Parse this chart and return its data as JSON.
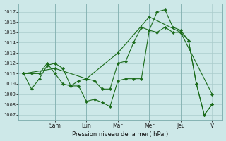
{
  "ylabel": "Pression niveau de la mer( hPa )",
  "background_color": "#cde8e8",
  "grid_color": "#aacccc",
  "line_color": "#1a6b1a",
  "ylim": [
    1006.5,
    1017.8
  ],
  "yticks": [
    1007,
    1008,
    1009,
    1010,
    1011,
    1012,
    1013,
    1014,
    1015,
    1016,
    1017
  ],
  "day_labels": [
    "Sam",
    "Lun",
    "Mar",
    "Mer",
    "Jeu",
    "V"
  ],
  "day_positions": [
    24,
    48,
    72,
    96,
    120,
    144
  ],
  "xlim": [
    -4,
    152
  ],
  "s1x": [
    0,
    6,
    12,
    18,
    24,
    30,
    36,
    42,
    48,
    54,
    60,
    66,
    72,
    78,
    84,
    90,
    96,
    102,
    108,
    114,
    120,
    126,
    132,
    138,
    144
  ],
  "s1y": [
    1011.0,
    1009.5,
    1010.5,
    1011.8,
    1012.0,
    1011.5,
    1009.8,
    1010.3,
    1010.5,
    1010.3,
    1009.5,
    1009.5,
    1012.0,
    1012.2,
    1014.0,
    1015.5,
    1015.2,
    1017.0,
    1017.2,
    1015.5,
    1015.2,
    1014.2,
    1010.0,
    1007.0,
    1008.0
  ],
  "s2x": [
    0,
    6,
    12,
    18,
    24,
    30,
    36,
    42,
    48,
    54,
    60,
    66,
    72,
    78,
    84,
    90,
    96,
    102,
    108,
    114,
    120,
    126,
    132,
    138,
    144
  ],
  "s2y": [
    1011.0,
    1011.0,
    1011.0,
    1012.0,
    1011.0,
    1010.0,
    1009.8,
    1009.8,
    1008.3,
    1008.5,
    1008.2,
    1007.8,
    1010.3,
    1010.5,
    1010.5,
    1010.5,
    1015.2,
    1015.0,
    1015.5,
    1015.0,
    1015.0,
    1014.2,
    1010.0,
    1007.0,
    1008.0
  ],
  "s3x": [
    0,
    24,
    48,
    72,
    96,
    120,
    144
  ],
  "s3y": [
    1011.0,
    1011.5,
    1010.5,
    1013.0,
    1016.5,
    1015.0,
    1009.0
  ]
}
